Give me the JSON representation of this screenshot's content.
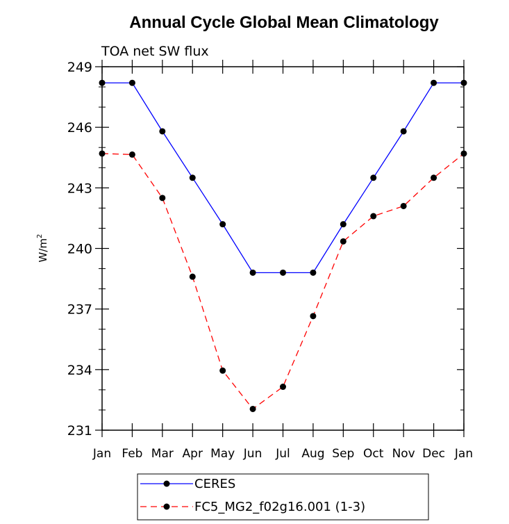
{
  "chart_data": {
    "type": "line",
    "title": "Annual Cycle Global Mean Climatology",
    "subtitle": "TOA net SW flux",
    "ylabel_base": "W/m",
    "ylabel_sup": "2",
    "xlabel": "",
    "categories": [
      "Jan",
      "Feb",
      "Mar",
      "Apr",
      "May",
      "Jun",
      "Jul",
      "Aug",
      "Sep",
      "Oct",
      "Nov",
      "Dec",
      "Jan"
    ],
    "ylim": [
      231,
      249
    ],
    "yticks": [
      231,
      234,
      237,
      240,
      243,
      246,
      249
    ],
    "series": [
      {
        "name": "CERES",
        "color": "#0000ff",
        "dash": "solid",
        "values": [
          248.2,
          248.2,
          245.8,
          243.5,
          241.2,
          238.8,
          238.8,
          238.8,
          241.2,
          243.5,
          245.8,
          248.2,
          248.2
        ]
      },
      {
        "name": "FC5_MG2_f02g16.001 (1-3)",
        "color": "#ff0000",
        "dash": "dashed",
        "values": [
          244.7,
          244.65,
          242.5,
          238.6,
          233.95,
          232.05,
          233.15,
          236.65,
          240.35,
          241.6,
          242.1,
          243.5,
          244.7
        ]
      }
    ]
  }
}
